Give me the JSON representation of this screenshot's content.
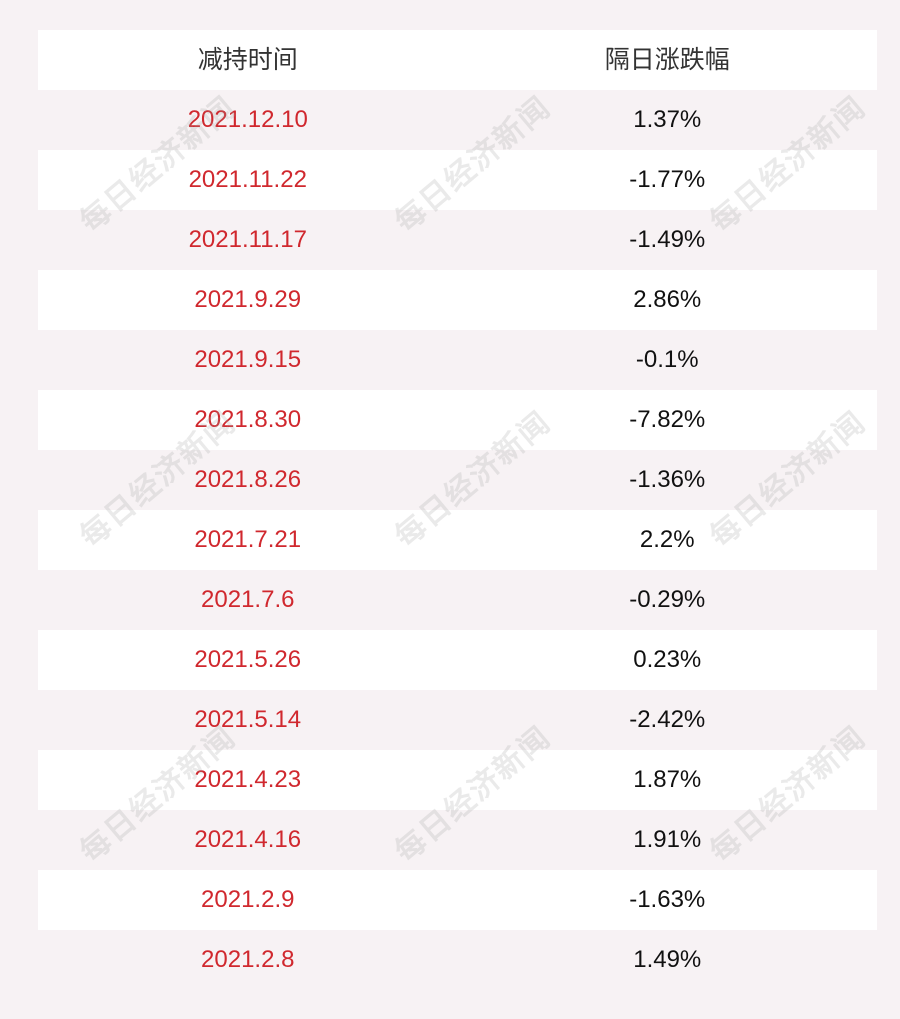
{
  "table": {
    "headers": {
      "date": "减持时间",
      "change": "隔日涨跌幅"
    },
    "rows": [
      {
        "date": "2021.12.10",
        "change": "1.37%"
      },
      {
        "date": "2021.11.22",
        "change": "-1.77%"
      },
      {
        "date": "2021.11.17",
        "change": "-1.49%"
      },
      {
        "date": "2021.9.29",
        "change": "2.86%"
      },
      {
        "date": "2021.9.15",
        "change": "-0.1%"
      },
      {
        "date": "2021.8.30",
        "change": "-7.82%"
      },
      {
        "date": "2021.8.26",
        "change": "-1.36%"
      },
      {
        "date": "2021.7.21",
        "change": "2.2%"
      },
      {
        "date": "2021.7.6",
        "change": "-0.29%"
      },
      {
        "date": "2021.5.26",
        "change": "0.23%"
      },
      {
        "date": "2021.5.14",
        "change": "-2.42%"
      },
      {
        "date": "2021.4.23",
        "change": "1.87%"
      },
      {
        "date": "2021.4.16",
        "change": "1.91%"
      },
      {
        "date": "2021.2.9",
        "change": "-1.63%"
      },
      {
        "date": "2021.2.8",
        "change": "1.49%"
      }
    ]
  },
  "watermark": {
    "text": "每日经济新闻"
  },
  "colors": {
    "date_text": "#d0282e",
    "value_text": "#111111",
    "header_text": "#333333",
    "row_alt_bg": "#f7f2f4",
    "row_bg": "#ffffff"
  }
}
